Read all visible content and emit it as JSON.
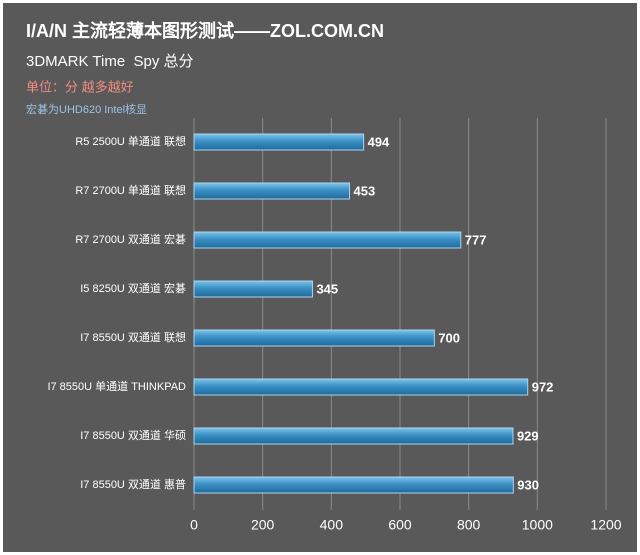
{
  "chart_data": {
    "type": "bar",
    "orientation": "horizontal",
    "title": "I/A/N 主流轻薄本图形测试——ZOL.COM.CN",
    "subtitle": "3DMARK Time  Spy 总分",
    "annotations": [
      "单位：分 越多越好",
      "宏碁为UHD620 Intel核显"
    ],
    "categories": [
      "R5 2500U 单通道 联想",
      "R7 2700U 单通道 联想",
      "R7 2700U 双通道 宏碁",
      "I5 8250U 双通道 宏碁",
      "I7 8550U 双通道 联想",
      "I7 8550U 单通道 THINKPAD",
      "I7 8550U 双通道 华硕",
      "I7 8550U 双通道 惠普"
    ],
    "values": [
      494,
      453,
      777,
      345,
      700,
      972,
      929,
      930
    ],
    "color": "#3a8fc4",
    "xlim": [
      0,
      1200
    ],
    "xticks": [
      0,
      200,
      400,
      600,
      800,
      1000,
      1200
    ],
    "grid": true
  }
}
